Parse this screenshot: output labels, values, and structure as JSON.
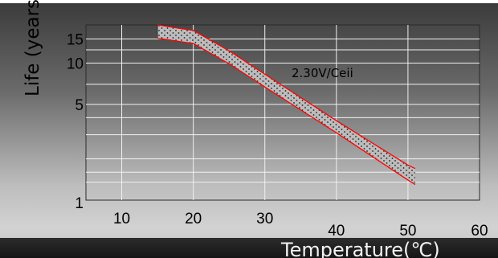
{
  "chart_data": {
    "type": "area",
    "title": "",
    "xlabel": "Temperature(℃)",
    "ylabel": "Life (years)",
    "x_ticks": [
      10,
      20,
      30,
      40,
      50,
      60
    ],
    "y_ticks": [
      1,
      5,
      10,
      15
    ],
    "xlim": [
      5,
      60
    ],
    "ylim": [
      1,
      19
    ],
    "y_scale": "log",
    "grid": true,
    "annotation": "2.30V/Ceii",
    "series": [
      {
        "band_upper": [
          [
            15,
            19
          ],
          [
            20,
            17.3
          ],
          [
            25,
            12.3
          ],
          [
            30,
            8.3
          ],
          [
            40,
            3.8
          ],
          [
            50,
            1.8
          ],
          [
            51,
            1.7
          ]
        ],
        "band_lower": [
          [
            15,
            15.2
          ],
          [
            20,
            13.9
          ],
          [
            25,
            9.9
          ],
          [
            30,
            6.7
          ],
          [
            40,
            3.1
          ],
          [
            50,
            1.4
          ],
          [
            51,
            1.3
          ]
        ],
        "color": "#ff0000"
      }
    ]
  }
}
